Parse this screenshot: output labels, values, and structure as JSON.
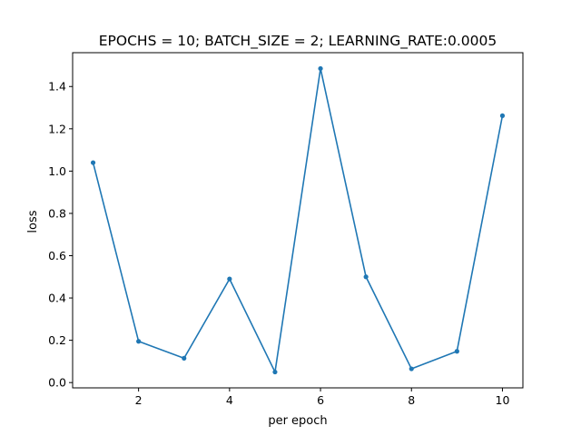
{
  "chart_data": {
    "type": "line",
    "title": "EPOCHS = 10; BATCH_SIZE = 2; LEARNING_RATE:0.0005",
    "xlabel": "per epoch",
    "ylabel": "loss",
    "x": [
      1,
      2,
      3,
      4,
      5,
      6,
      7,
      8,
      9,
      10
    ],
    "series": [
      {
        "values": [
          1.04,
          0.195,
          0.115,
          0.49,
          0.05,
          1.485,
          0.5,
          0.065,
          0.148,
          1.262
        ]
      }
    ],
    "xlim": [
      0.55,
      10.45
    ],
    "ylim": [
      -0.025,
      1.56
    ],
    "xticks": [
      "2",
      "4",
      "6",
      "8",
      "10"
    ],
    "yticks": [
      "0.0",
      "0.2",
      "0.4",
      "0.6",
      "0.8",
      "1.0",
      "1.2",
      "1.4"
    ],
    "grid": false,
    "legend": "none",
    "line_color": "#1f77b4"
  }
}
